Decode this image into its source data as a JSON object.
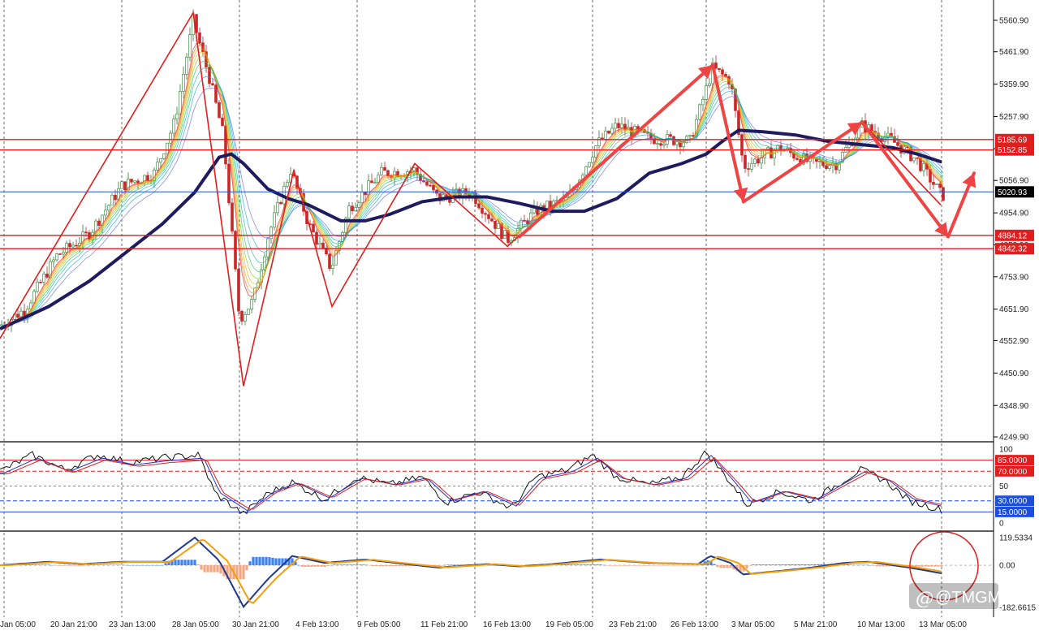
{
  "watermark": "@TMGM",
  "colors": {
    "support_resistance": "#e11d1d",
    "current_price": "#1d4ed8",
    "ma_long": "#1e1b5e",
    "zigzag": "#e11d1d",
    "arrow": "#ef4444",
    "up_bar": "#2e7d32",
    "down_bar": "#c62828",
    "hist_pos": "#3b82f6",
    "hist_neg": "#f4a582",
    "macd_line": "#1e3a8a",
    "signal_line": "#f59e0b"
  },
  "chart_data": [
    {
      "type": "candlestick",
      "panel": "price",
      "x_labels": [
        "Jan 05:00",
        "20 Jan 21:00",
        "23 Jan 13:00",
        "28 Jan 05:00",
        "30 Jan 21:00",
        "4 Feb 13:00",
        "9 Feb 05:00",
        "11 Feb 21:00",
        "16 Feb 13:00",
        "19 Feb 05:00",
        "23 Feb 21:00",
        "26 Feb 13:00",
        "3 Mar 05:00",
        "5 Mar 21:00",
        "10 Mar 13:00",
        "13 Mar 05:00"
      ],
      "y_ticks": [
        "5560.90",
        "5461.90",
        "5359.90",
        "5257.90",
        "5156.90",
        "5056.90",
        "4954.90",
        "4853.90",
        "4753.90",
        "4651.90",
        "4552.90",
        "4450.90",
        "4348.90",
        "4249.90"
      ],
      "ylim": [
        4249.9,
        5560.9
      ],
      "current_price": "5020.93",
      "levels": [
        {
          "value": "5185.69",
          "kind": "resistance"
        },
        {
          "value": "5152.85",
          "kind": "resistance"
        },
        {
          "value": "4884.12",
          "kind": "support"
        },
        {
          "value": "4842.32",
          "kind": "support"
        }
      ],
      "zigzag": [
        [
          0,
          4560
        ],
        [
          238,
          5585
        ],
        [
          300,
          4410
        ],
        [
          362,
          5090
        ],
        [
          409,
          4660
        ],
        [
          511,
          5110
        ],
        [
          625,
          4850
        ],
        [
          878,
          5420
        ],
        [
          916,
          4990
        ],
        [
          1062,
          5240
        ],
        [
          1159,
          4980
        ]
      ],
      "arrows": [
        {
          "from": [
            640,
            4880
          ],
          "to": [
            878,
            5420
          ]
        },
        {
          "from": [
            878,
            5420
          ],
          "to": [
            916,
            4990
          ]
        },
        {
          "from": [
            916,
            4990
          ],
          "to": [
            1062,
            5240
          ]
        },
        {
          "from": [
            1062,
            5240
          ],
          "to": [
            1168,
            4880
          ]
        },
        {
          "from": [
            1168,
            4880
          ],
          "to": [
            1200,
            5080
          ]
        }
      ],
      "ma_path": [
        [
          0,
          4590
        ],
        [
          60,
          4660
        ],
        [
          110,
          4740
        ],
        [
          160,
          4840
        ],
        [
          200,
          4920
        ],
        [
          240,
          5020
        ],
        [
          270,
          5130
        ],
        [
          285,
          5140
        ],
        [
          300,
          5110
        ],
        [
          330,
          5030
        ],
        [
          355,
          5000
        ],
        [
          380,
          4980
        ],
        [
          420,
          4930
        ],
        [
          450,
          4930
        ],
        [
          480,
          4950
        ],
        [
          520,
          4990
        ],
        [
          560,
          5005
        ],
        [
          600,
          5005
        ],
        [
          640,
          4985
        ],
        [
          680,
          4960
        ],
        [
          720,
          4960
        ],
        [
          760,
          5000
        ],
        [
          800,
          5080
        ],
        [
          840,
          5110
        ],
        [
          870,
          5140
        ],
        [
          890,
          5180
        ],
        [
          910,
          5215
        ],
        [
          940,
          5210
        ],
        [
          980,
          5200
        ],
        [
          1020,
          5180
        ],
        [
          1060,
          5170
        ],
        [
          1100,
          5160
        ],
        [
          1130,
          5140
        ],
        [
          1160,
          5115
        ]
      ],
      "candles_anchor": [
        [
          0,
          4600
        ],
        [
          30,
          4650
        ],
        [
          70,
          4820
        ],
        [
          110,
          4890
        ],
        [
          150,
          5040
        ],
        [
          190,
          5080
        ],
        [
          215,
          5240
        ],
        [
          238,
          5560
        ],
        [
          258,
          5380
        ],
        [
          275,
          5200
        ],
        [
          295,
          4620
        ],
        [
          312,
          4680
        ],
        [
          330,
          4880
        ],
        [
          358,
          5090
        ],
        [
          380,
          4920
        ],
        [
          408,
          4780
        ],
        [
          430,
          4970
        ],
        [
          470,
          5080
        ],
        [
          510,
          5090
        ],
        [
          540,
          5000
        ],
        [
          580,
          5020
        ],
        [
          625,
          4870
        ],
        [
          660,
          4960
        ],
        [
          700,
          5000
        ],
        [
          735,
          5170
        ],
        [
          760,
          5230
        ],
        [
          800,
          5190
        ],
        [
          850,
          5180
        ],
        [
          878,
          5410
        ],
        [
          900,
          5370
        ],
        [
          916,
          5100
        ],
        [
          960,
          5160
        ],
        [
          1000,
          5110
        ],
        [
          1030,
          5110
        ],
        [
          1062,
          5230
        ],
        [
          1100,
          5180
        ],
        [
          1130,
          5120
        ],
        [
          1160,
          5010
        ]
      ]
    },
    {
      "type": "line",
      "panel": "stochastic",
      "levels": [
        "85.0000",
        "70.0000",
        "30.0000",
        "15.0000"
      ],
      "y_ticks": [
        "100",
        "50",
        "0"
      ],
      "ylim": [
        0,
        100
      ]
    },
    {
      "type": "histogram",
      "panel": "macd",
      "y_ticks": [
        "119.5334",
        "0.00",
        "-182.6615"
      ],
      "ylim": [
        -182.6615,
        119.5334
      ]
    }
  ]
}
